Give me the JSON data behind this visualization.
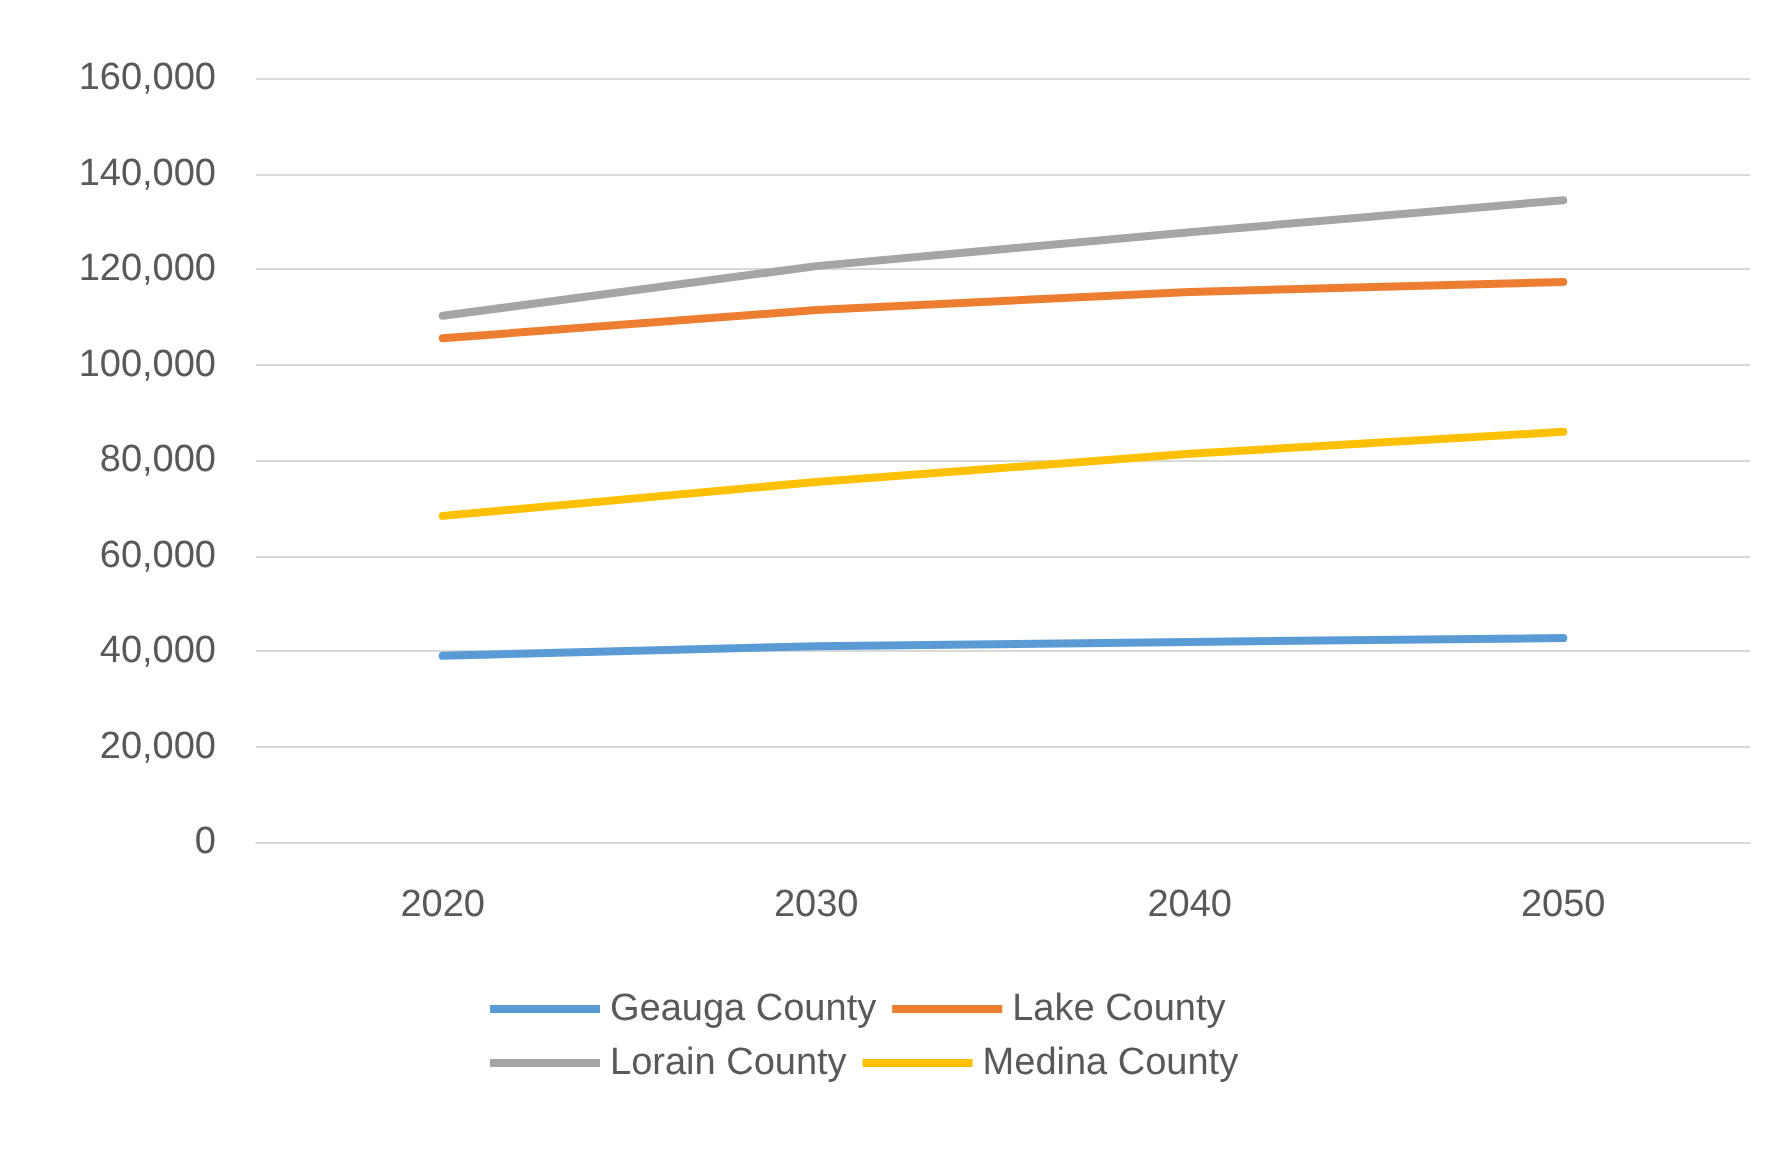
{
  "chart_data": {
    "type": "line",
    "categories": [
      "2020",
      "2030",
      "2040",
      "2050"
    ],
    "series": [
      {
        "name": "Geauga County",
        "color": "#5b9bd5",
        "values": [
          39000,
          41000,
          41900,
          42700
        ]
      },
      {
        "name": "Lake County",
        "color": "#ed7d31",
        "values": [
          105500,
          111400,
          115200,
          117300
        ]
      },
      {
        "name": "Lorain County",
        "color": "#a5a5a5",
        "values": [
          110200,
          120600,
          127700,
          134400
        ]
      },
      {
        "name": "Medina County",
        "color": "#ffc000",
        "values": [
          68300,
          75400,
          81300,
          85900
        ]
      }
    ],
    "ylim": [
      0,
      160000
    ],
    "yticks": [
      {
        "value": 0,
        "label": "0"
      },
      {
        "value": 20000,
        "label": "20,000"
      },
      {
        "value": 40000,
        "label": "40,000"
      },
      {
        "value": 60000,
        "label": "60,000"
      },
      {
        "value": 80000,
        "label": "80,000"
      },
      {
        "value": 100000,
        "label": "100,000"
      },
      {
        "value": 120000,
        "label": "120,000"
      },
      {
        "value": 140000,
        "label": "140,000"
      },
      {
        "value": 160000,
        "label": "160,000"
      }
    ],
    "grid": "y",
    "legend": "bottom",
    "marker": "none",
    "line_style": "solid"
  }
}
